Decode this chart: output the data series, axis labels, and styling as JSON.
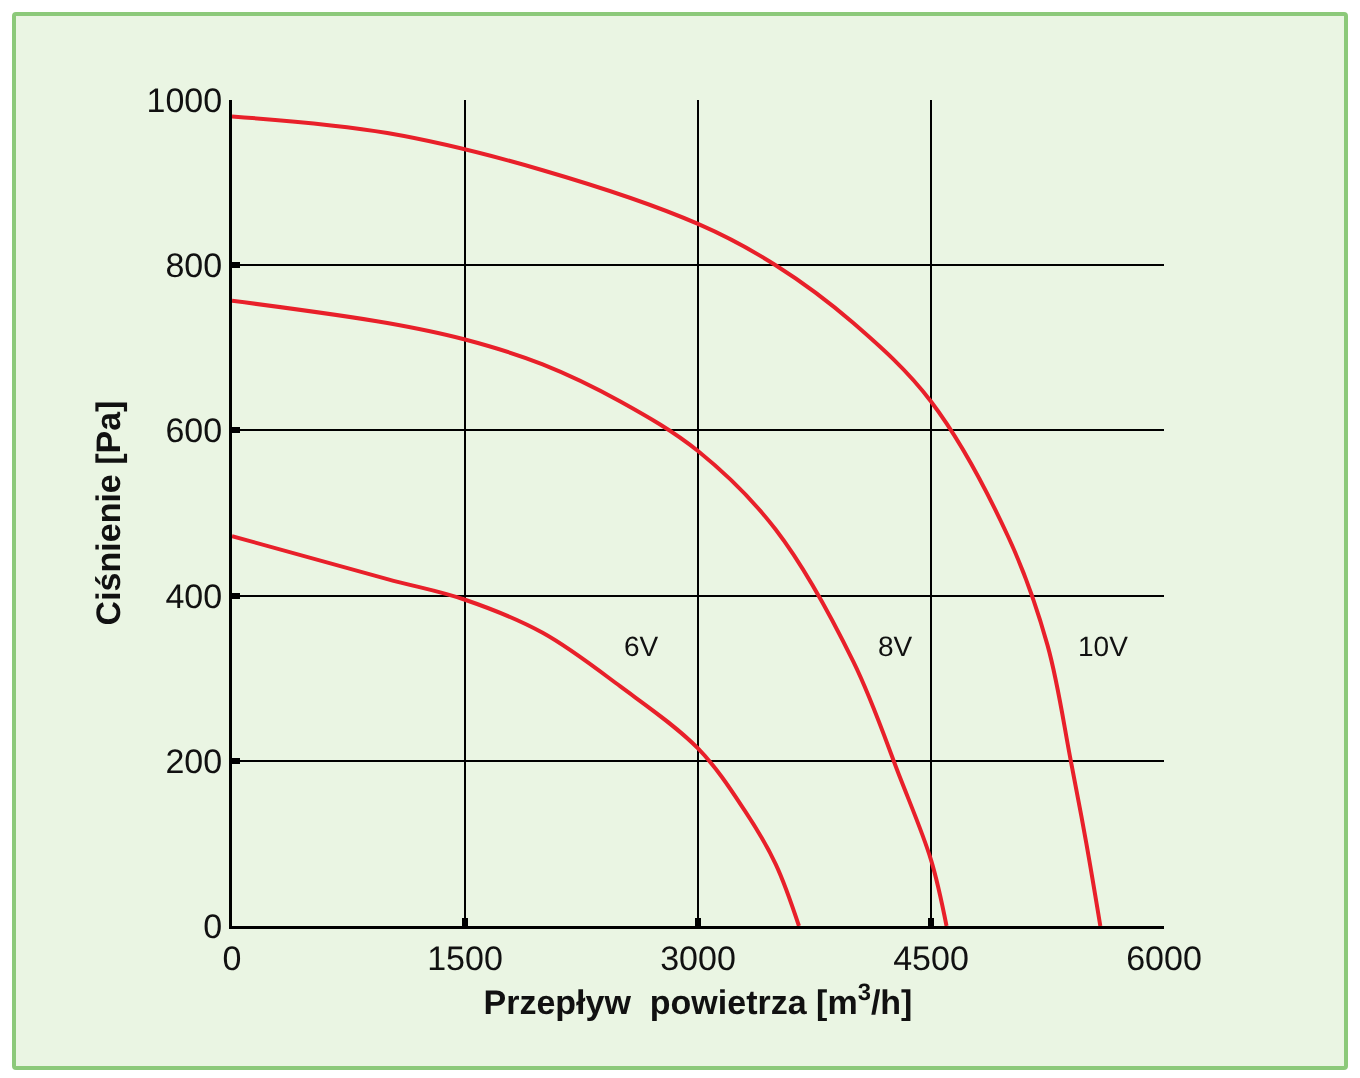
{
  "chart_data": {
    "type": "line",
    "xlabel": "Przepływ  powietrza [m$^{3}$/h]",
    "ylabel": "Ciśnienie [Pa]",
    "xlim": [
      0,
      6000
    ],
    "xticks": [
      0,
      1500,
      3000,
      4500,
      6000
    ],
    "ylim": [
      0,
      1000
    ],
    "yticks": [
      0,
      200,
      400,
      600,
      800,
      1000
    ],
    "grid": true,
    "marker": "none",
    "line_style": "solid",
    "series": [
      {
        "color": "#e8202a",
        "x": [
          0,
          1000,
          2000,
          3000,
          3500,
          4000,
          4500,
          5000,
          5250,
          5400,
          5500,
          5590
        ],
        "values": [
          980,
          960,
          915,
          850,
          800,
          730,
          635,
          470,
          340,
          200,
          100,
          0
        ]
      },
      {
        "color": "#e8202a",
        "x": [
          0,
          1000,
          1500,
          2000,
          2500,
          3000,
          3500,
          4000,
          4300,
          4500,
          4600
        ],
        "values": [
          757,
          730,
          710,
          680,
          635,
          575,
          480,
          320,
          180,
          80,
          0
        ]
      },
      {
        "color": "#e8202a",
        "x": [
          0,
          1000,
          1500,
          2000,
          2500,
          3000,
          3300,
          3500,
          3650
        ],
        "values": [
          472,
          420,
          395,
          355,
          290,
          215,
          140,
          75,
          0
        ]
      }
    ],
    "annotations": [
      {
        "text": "6V",
        "x": 2640,
        "y": 340
      },
      {
        "text": "8V",
        "x": 4280,
        "y": 340
      },
      {
        "text": "10V",
        "x": 5620,
        "y": 340
      }
    ]
  }
}
